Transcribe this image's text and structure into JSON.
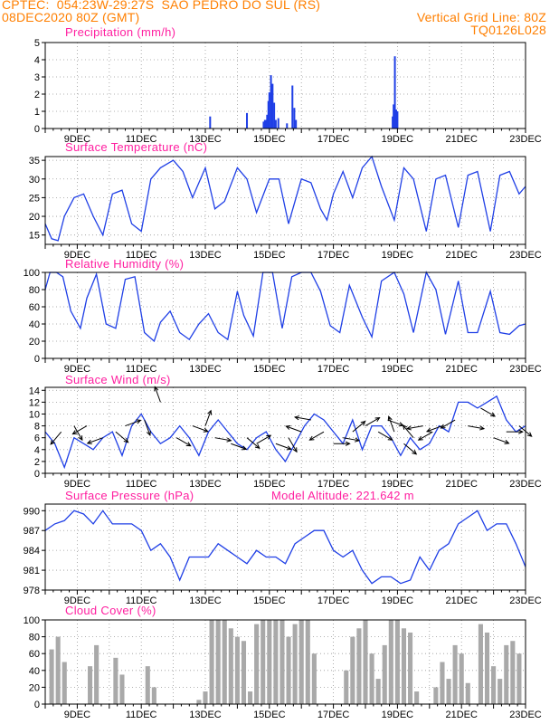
{
  "header": {
    "line1_left": "CPTEC:  054:23W-29:27S  SAO PEDRO DO SUL (RS)",
    "line2_left": "08DEC2020 80Z (GMT)",
    "line2_right": "Vertical Grid Line: 80Z",
    "line3_right": "TQ0126L028"
  },
  "colors": {
    "header": "#ff7f00",
    "title": "#ff1fa0",
    "series": "#1f3fe6",
    "cloud": "#a9a9a9"
  },
  "x_axis": {
    "tick_labels": [
      "9DEC",
      "11DEC",
      "13DEC",
      "15DEC",
      "17DEC",
      "19DEC",
      "21DEC",
      "23DEC"
    ],
    "range_days": [
      8.0,
      23.0
    ]
  },
  "chart_data": [
    {
      "type": "bar",
      "title": "Precipitation (mm/h)",
      "ylim": [
        0,
        5
      ],
      "yticks": [
        "0",
        "1",
        "2",
        "3",
        "4",
        "5"
      ],
      "x": [
        13.15,
        14.3,
        14.82,
        14.86,
        14.9,
        14.93,
        14.97,
        15.0,
        15.05,
        15.1,
        15.15,
        15.2,
        15.28,
        15.55,
        15.72,
        15.78,
        15.83,
        18.85,
        18.88,
        18.92,
        18.96,
        19.0
      ],
      "values": [
        0.7,
        0.9,
        0.4,
        0.5,
        0.5,
        0.8,
        1.6,
        2.1,
        3.1,
        2.6,
        1.5,
        0.5,
        0.6,
        0.3,
        2.5,
        1.2,
        0.5,
        0.7,
        1.4,
        4.2,
        1.1,
        1.0
      ]
    },
    {
      "type": "line",
      "title": "Surface Temperature (nC)",
      "ylim": [
        12.5,
        36
      ],
      "yticks": [
        "15",
        "20",
        "25",
        "30",
        "35"
      ],
      "x": [
        8.0,
        8.2,
        8.4,
        8.6,
        8.9,
        9.2,
        9.5,
        9.8,
        10.1,
        10.4,
        10.7,
        11.0,
        11.3,
        11.6,
        12.0,
        12.3,
        12.6,
        13.0,
        13.3,
        13.6,
        14.0,
        14.3,
        14.6,
        15.0,
        15.3,
        15.6,
        16.0,
        16.3,
        16.6,
        16.8,
        17.0,
        17.3,
        17.6,
        17.9,
        18.2,
        18.5,
        18.9,
        19.2,
        19.5,
        19.9,
        20.2,
        20.5,
        20.9,
        21.2,
        21.5,
        21.9,
        22.2,
        22.5,
        22.8,
        23.0
      ],
      "values": [
        18,
        14,
        13.5,
        20,
        25,
        26,
        20,
        15,
        26,
        27,
        18,
        16,
        30,
        33,
        35,
        32,
        25,
        33,
        22,
        24,
        33,
        30,
        21,
        30,
        30,
        18,
        30,
        29,
        22,
        19,
        26,
        32,
        25,
        33,
        36,
        28,
        19,
        33,
        30,
        16,
        30,
        31,
        17,
        31,
        32,
        16,
        31,
        32,
        26,
        28
      ]
    },
    {
      "type": "line",
      "title": "Relative Humidity (%)",
      "ylim": [
        0,
        100
      ],
      "yticks": [
        "0",
        "20",
        "40",
        "60",
        "80",
        "100"
      ],
      "x": [
        8.0,
        8.15,
        8.35,
        8.55,
        8.8,
        9.1,
        9.3,
        9.6,
        9.9,
        10.2,
        10.5,
        10.8,
        11.1,
        11.4,
        11.6,
        11.9,
        12.2,
        12.5,
        12.8,
        13.1,
        13.4,
        13.7,
        14.0,
        14.2,
        14.5,
        14.8,
        15.1,
        15.4,
        15.7,
        16.0,
        16.3,
        16.6,
        16.9,
        17.2,
        17.5,
        17.9,
        18.2,
        18.5,
        18.9,
        19.2,
        19.5,
        19.9,
        20.2,
        20.5,
        20.9,
        21.2,
        21.5,
        21.9,
        22.2,
        22.5,
        22.8,
        23.0
      ],
      "values": [
        80,
        100,
        100,
        95,
        55,
        35,
        70,
        98,
        40,
        35,
        92,
        95,
        30,
        20,
        42,
        55,
        30,
        22,
        40,
        52,
        30,
        22,
        78,
        50,
        26,
        100,
        100,
        35,
        95,
        100,
        100,
        78,
        38,
        30,
        85,
        48,
        25,
        90,
        100,
        75,
        30,
        100,
        80,
        28,
        90,
        30,
        30,
        78,
        30,
        28,
        38,
        40
      ]
    },
    {
      "type": "line",
      "title": "Surface Wind (m/s)",
      "ylim": [
        0,
        14.5
      ],
      "yticks": [
        "0",
        "2",
        "4",
        "6",
        "8",
        "10",
        "12",
        "14"
      ],
      "x": [
        8.0,
        8.3,
        8.6,
        8.9,
        9.2,
        9.5,
        9.8,
        10.1,
        10.4,
        10.7,
        11.0,
        11.3,
        11.6,
        11.9,
        12.2,
        12.5,
        12.8,
        13.1,
        13.4,
        13.7,
        14.0,
        14.3,
        14.6,
        14.9,
        15.2,
        15.5,
        15.8,
        16.1,
        16.4,
        16.7,
        17.0,
        17.3,
        17.6,
        17.9,
        18.2,
        18.5,
        18.8,
        19.1,
        19.4,
        19.7,
        20.0,
        20.3,
        20.6,
        20.9,
        21.2,
        21.5,
        21.8,
        22.1,
        22.4,
        22.7,
        23.0
      ],
      "values": [
        7,
        5,
        1,
        6,
        5,
        4,
        6,
        7,
        3,
        8,
        10,
        7,
        5,
        6,
        8,
        6,
        3,
        7,
        9,
        7,
        5,
        4,
        6,
        7,
        4,
        2,
        5,
        8,
        10,
        9,
        7,
        5,
        9,
        4,
        8,
        8,
        6,
        3,
        6,
        4,
        5,
        8,
        7,
        12,
        12,
        11,
        12,
        13,
        9,
        7,
        8
      ],
      "arrows": [
        [
          8.5,
          -130,
          7
        ],
        [
          8.9,
          -60,
          8
        ],
        [
          9.3,
          -150,
          8
        ],
        [
          9.8,
          -160,
          6
        ],
        [
          10.2,
          -40,
          7
        ],
        [
          10.5,
          20,
          8
        ],
        [
          11.1,
          -70,
          9
        ],
        [
          11.6,
          110,
          12
        ],
        [
          12.1,
          -30,
          6
        ],
        [
          12.6,
          -20,
          8
        ],
        [
          13.0,
          70,
          8
        ],
        [
          13.3,
          -10,
          6
        ],
        [
          13.8,
          -20,
          5
        ],
        [
          14.3,
          -40,
          6
        ],
        [
          14.6,
          30,
          5
        ],
        [
          15.2,
          -20,
          5
        ],
        [
          15.6,
          -60,
          6
        ],
        [
          16.0,
          160,
          7
        ],
        [
          16.3,
          170,
          9
        ],
        [
          16.7,
          -150,
          7
        ],
        [
          17.0,
          0,
          5
        ],
        [
          17.3,
          -10,
          6
        ],
        [
          17.6,
          40,
          7
        ],
        [
          18.0,
          30,
          8
        ],
        [
          18.4,
          -30,
          7
        ],
        [
          18.7,
          -20,
          9
        ],
        [
          18.9,
          110,
          7
        ],
        [
          19.2,
          -40,
          5
        ],
        [
          19.5,
          130,
          6
        ],
        [
          19.8,
          -170,
          8
        ],
        [
          20.1,
          -150,
          7
        ],
        [
          20.4,
          -160,
          8
        ],
        [
          20.8,
          -150,
          9
        ],
        [
          21.2,
          -10,
          8
        ],
        [
          21.6,
          -30,
          11
        ],
        [
          22.0,
          -20,
          6
        ],
        [
          22.4,
          0,
          7
        ],
        [
          22.8,
          -40,
          8
        ]
      ]
    },
    {
      "type": "line",
      "title": "Surface Pressure (hPa)",
      "annotation": "Model Altitude: 221.642 m",
      "ylim": [
        978,
        991
      ],
      "yticks": [
        "978",
        "981",
        "984",
        "987",
        "990"
      ],
      "x": [
        8.0,
        8.3,
        8.6,
        8.9,
        9.2,
        9.5,
        9.8,
        10.1,
        10.4,
        10.7,
        11.0,
        11.3,
        11.6,
        11.9,
        12.2,
        12.5,
        12.8,
        13.1,
        13.4,
        13.7,
        14.0,
        14.3,
        14.6,
        14.9,
        15.2,
        15.5,
        15.8,
        16.1,
        16.4,
        16.7,
        17.0,
        17.3,
        17.6,
        17.9,
        18.2,
        18.5,
        18.8,
        19.1,
        19.4,
        19.7,
        20.0,
        20.3,
        20.6,
        20.9,
        21.2,
        21.5,
        21.8,
        22.1,
        22.4,
        22.7,
        23.0
      ],
      "values": [
        987,
        988,
        988.5,
        990,
        989.5,
        988,
        990,
        988,
        988,
        988,
        987,
        984,
        985,
        983,
        979.5,
        983,
        983,
        983,
        985,
        984,
        983,
        982,
        984,
        983,
        983,
        982,
        985,
        986,
        987,
        987,
        984,
        983,
        984,
        981,
        979,
        980,
        980,
        979,
        979.5,
        983,
        981,
        984,
        985,
        988,
        989,
        990,
        987,
        988,
        988,
        985,
        981.5
      ]
    },
    {
      "type": "bar",
      "title": "Cloud Cover (%)",
      "ylim": [
        0,
        100
      ],
      "yticks": [
        "0",
        "20",
        "40",
        "60",
        "80",
        "100"
      ],
      "x": [
        8.0,
        8.2,
        8.4,
        8.6,
        8.8,
        9.0,
        9.2,
        9.4,
        9.6,
        9.8,
        10.0,
        10.2,
        10.4,
        10.6,
        10.8,
        11.0,
        11.2,
        11.4,
        11.6,
        11.8,
        12.0,
        12.2,
        12.4,
        12.6,
        12.8,
        13.0,
        13.2,
        13.4,
        13.6,
        13.8,
        14.0,
        14.2,
        14.4,
        14.6,
        14.8,
        15.0,
        15.2,
        15.4,
        15.6,
        15.8,
        16.0,
        16.2,
        16.4,
        16.6,
        16.8,
        17.0,
        17.2,
        17.4,
        17.6,
        17.8,
        18.0,
        18.2,
        18.4,
        18.6,
        18.8,
        19.0,
        19.2,
        19.4,
        19.6,
        19.8,
        20.0,
        20.2,
        20.4,
        20.6,
        20.8,
        21.0,
        21.2,
        21.4,
        21.6,
        21.8,
        22.0,
        22.2,
        22.4,
        22.6,
        22.8,
        23.0
      ],
      "values": [
        0,
        65,
        80,
        50,
        0,
        0,
        0,
        45,
        70,
        0,
        0,
        55,
        35,
        0,
        0,
        0,
        45,
        20,
        0,
        0,
        0,
        0,
        0,
        0,
        5,
        15,
        100,
        100,
        100,
        90,
        80,
        75,
        15,
        95,
        100,
        100,
        100,
        100,
        80,
        95,
        100,
        100,
        60,
        0,
        0,
        0,
        0,
        40,
        80,
        90,
        100,
        60,
        30,
        70,
        100,
        100,
        90,
        85,
        15,
        0,
        0,
        20,
        50,
        30,
        70,
        60,
        25,
        0,
        95,
        85,
        45,
        30,
        70,
        75,
        60,
        0
      ]
    }
  ]
}
